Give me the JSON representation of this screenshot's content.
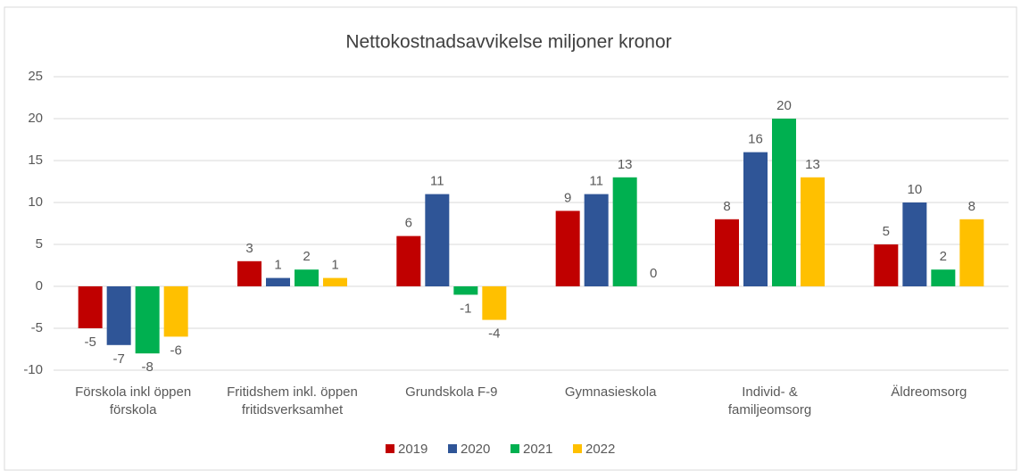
{
  "chart_data": {
    "type": "bar",
    "title": "Nettokostnadsavvikelse miljoner kronor",
    "categories": [
      [
        "Förskola inkl öppen",
        "förskola"
      ],
      [
        "Fritidshem inkl. öppen",
        "fritidsverksamhet"
      ],
      [
        "Grundskola F-9"
      ],
      [
        "Gymnasieskola"
      ],
      [
        "Individ- &",
        "familjeomsorg"
      ],
      [
        "Äldreomsorg"
      ]
    ],
    "series": [
      {
        "name": "2019",
        "color": "#c00000",
        "values": [
          -5,
          3,
          6,
          9,
          8,
          5
        ]
      },
      {
        "name": "2020",
        "color": "#2f5597",
        "values": [
          -7,
          1,
          11,
          11,
          16,
          10
        ]
      },
      {
        "name": "2021",
        "color": "#00b050",
        "values": [
          -8,
          2,
          -1,
          13,
          20,
          2
        ]
      },
      {
        "name": "2022",
        "color": "#ffc000",
        "values": [
          -6,
          1,
          -4,
          0,
          13,
          8
        ]
      }
    ],
    "ylim": [
      -10,
      25
    ],
    "yticks": [
      -10,
      -5,
      0,
      5,
      10,
      15,
      20,
      25
    ],
    "grid": true,
    "legend": "bottom"
  }
}
